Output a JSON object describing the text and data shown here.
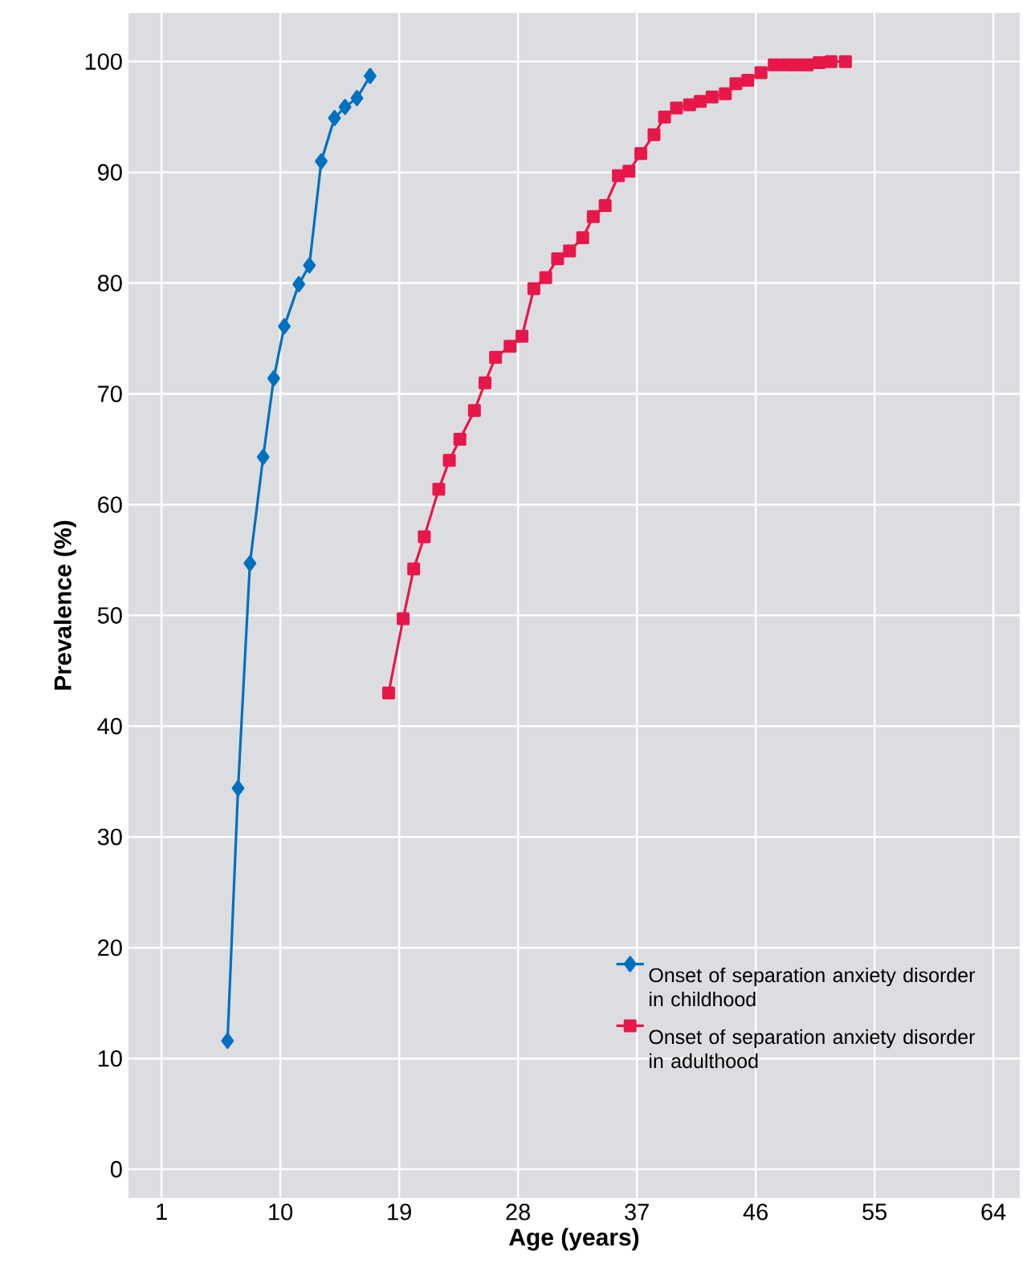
{
  "chart_data": {
    "type": "line",
    "xlabel": "Age (years)",
    "ylabel": "Prevalence (%)",
    "xlim": [
      -1.5,
      66
    ],
    "ylim": [
      -2.6,
      104.4
    ],
    "xticks": [
      1,
      10,
      19,
      28,
      37,
      46,
      55,
      64
    ],
    "yticks": [
      0,
      10,
      20,
      30,
      40,
      50,
      60,
      70,
      80,
      90,
      100
    ],
    "grid": true,
    "legend": "bottom right",
    "series": [
      {
        "name": "Onset of separation anxiety disorder in childhood",
        "color": "#0070c0",
        "marker": "diamond",
        "x": [
          6.0,
          6.8,
          7.7,
          8.7,
          9.5,
          10.3,
          11.4,
          12.2,
          13.1,
          14.1,
          14.9,
          15.8,
          16.8
        ],
        "values": [
          11.6,
          34.4,
          54.7,
          64.3,
          71.4,
          76.1,
          79.9,
          81.6,
          91.0,
          94.9,
          95.9,
          96.7,
          98.7
        ]
      },
      {
        "name": "Onset of separation anxiety disorder in adulthood",
        "color": "#e8174a",
        "marker": "square",
        "x": [
          18.2,
          19.3,
          20.1,
          20.9,
          22.0,
          22.8,
          23.6,
          24.7,
          25.5,
          26.3,
          27.4,
          28.3,
          29.2,
          30.1,
          31.0,
          31.9,
          32.9,
          33.7,
          34.6,
          35.6,
          36.4,
          37.3,
          38.3,
          39.1,
          40.0,
          41.0,
          41.8,
          42.7,
          43.7,
          44.5,
          45.4,
          46.4,
          47.4,
          48.3,
          49.1,
          49.9,
          50.8,
          51.7,
          52.8
        ],
        "values": [
          43.0,
          49.7,
          54.2,
          57.1,
          61.4,
          64.0,
          65.9,
          68.5,
          71.0,
          73.3,
          74.3,
          75.2,
          79.5,
          80.5,
          82.2,
          82.9,
          84.1,
          86.0,
          87.0,
          89.7,
          90.1,
          91.7,
          93.4,
          95.0,
          95.8,
          96.1,
          96.4,
          96.8,
          97.1,
          98.0,
          98.3,
          99.0,
          99.7,
          99.7,
          99.7,
          99.7,
          99.9,
          100,
          100
        ]
      }
    ]
  }
}
